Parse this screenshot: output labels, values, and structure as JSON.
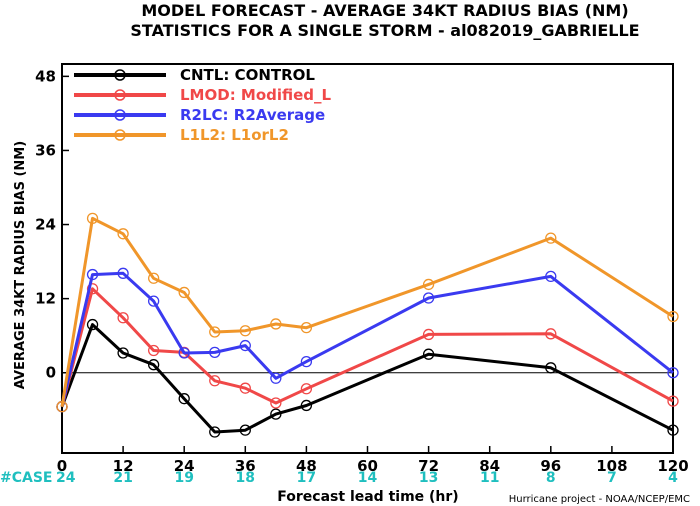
{
  "chart_data": {
    "type": "line",
    "title": "MODEL FORECAST - AVERAGE 34KT RADIUS BIAS (NM)",
    "subtitle": "STATISTICS FOR A SINGLE STORM - al082019_GABRIELLE",
    "xlabel": "Forecast lead time (hr)",
    "ylabel": "AVERAGE 34KT RADIUS BIAS (NM)",
    "xlim": [
      0,
      120
    ],
    "ylim": [
      -13,
      50
    ],
    "x_ticks": [
      0,
      12,
      24,
      36,
      48,
      60,
      72,
      84,
      96,
      108,
      120
    ],
    "y_ticks": [
      0,
      12,
      24,
      36,
      48
    ],
    "zero_line": true,
    "grid": false,
    "legend_position": "top-left",
    "case_label": "#CASE",
    "case_x": [
      0,
      12,
      24,
      36,
      48,
      60,
      72,
      84,
      96,
      108,
      120
    ],
    "case_counts": [
      24,
      21,
      19,
      18,
      17,
      14,
      13,
      11,
      8,
      7,
      4
    ],
    "credit": "Hurricane project - NOAA/NCEP/EMC",
    "series": [
      {
        "name": "CNTL: CONTROL",
        "color": "#000000",
        "x": [
          0,
          6,
          12,
          18,
          24,
          30,
          36,
          42,
          48,
          72,
          96,
          120
        ],
        "values": [
          -5.5,
          7.8,
          3.2,
          1.3,
          -4.2,
          -9.6,
          -9.3,
          -6.7,
          -5.3,
          3.0,
          0.8,
          -9.3
        ]
      },
      {
        "name": "LMOD: Modified_L",
        "color": "#f04848",
        "x": [
          0,
          6,
          12,
          18,
          24,
          30,
          36,
          42,
          48,
          72,
          96,
          120
        ],
        "values": [
          -5.5,
          13.6,
          8.9,
          3.6,
          3.3,
          -1.3,
          -2.5,
          -4.9,
          -2.6,
          6.2,
          6.3,
          -4.6
        ]
      },
      {
        "name": "R2LC: R2Average",
        "color": "#3a3af0",
        "x": [
          0,
          6,
          12,
          18,
          24,
          30,
          36,
          42,
          48,
          72,
          96,
          120
        ],
        "values": [
          -5.5,
          15.9,
          16.1,
          11.6,
          3.2,
          3.3,
          4.4,
          -0.9,
          1.8,
          12.1,
          15.6,
          0.0
        ]
      },
      {
        "name": "L1L2: L1orL2",
        "color": "#f0962a",
        "x": [
          0,
          6,
          12,
          18,
          24,
          30,
          36,
          42,
          48,
          72,
          96,
          120
        ],
        "values": [
          -5.5,
          25.0,
          22.5,
          15.3,
          13.0,
          6.6,
          6.8,
          7.9,
          7.3,
          14.3,
          21.8,
          9.1
        ]
      }
    ]
  }
}
